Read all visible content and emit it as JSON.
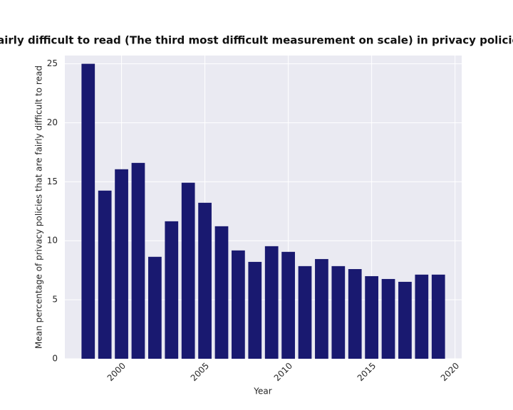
{
  "chart_data": {
    "type": "bar",
    "title": "are fairly difficult to read (The third most difficult measurement on scale) in privacy policies by",
    "x_label": "Year",
    "y_label": "Mean percentage of privacy policies that are fairly difficult to read",
    "x": [
      1998,
      1999,
      2000,
      2001,
      2002,
      2003,
      2004,
      2005,
      2006,
      2007,
      2008,
      2009,
      2010,
      2011,
      2012,
      2013,
      2014,
      2015,
      2016,
      2017,
      2018,
      2019
    ],
    "values": [
      25.0,
      14.25,
      16.06,
      16.6,
      8.64,
      11.65,
      14.92,
      13.22,
      11.23,
      9.18,
      8.21,
      9.54,
      9.06,
      7.85,
      8.45,
      7.85,
      7.6,
      7.0,
      6.76,
      6.52,
      7.13,
      7.13
    ],
    "color": "#191970",
    "xlim": [
      1996.6,
      2020.4
    ],
    "xticks": [
      2000,
      2005,
      2010,
      2015,
      2020
    ],
    "ylim": [
      0,
      25.7
    ],
    "yticks": [
      0,
      5,
      10,
      15,
      20,
      25
    ],
    "grid": true
  }
}
